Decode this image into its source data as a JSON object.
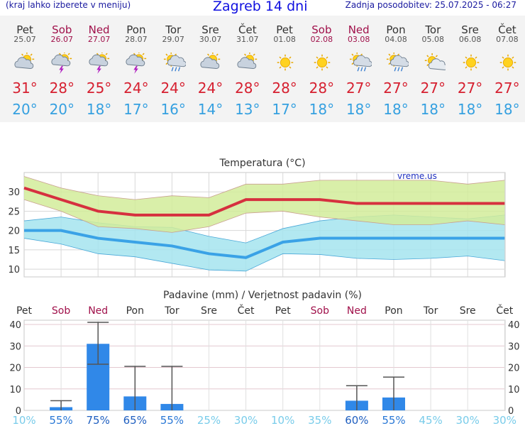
{
  "header": {
    "note": "(kraj lahko izberete v meniju)",
    "title": "Zagreb 14 dni",
    "updated": "Zadnja posodobitev: 25.07.2025 - 06:27"
  },
  "days": [
    {
      "name": "Pet",
      "date": "25.07",
      "weekend": false,
      "icon": "partly-cloudy-icon",
      "max": "31°",
      "min": "20°"
    },
    {
      "name": "Sob",
      "date": "26.07",
      "weekend": true,
      "icon": "thunderstorm-icon",
      "max": "28°",
      "min": "20°"
    },
    {
      "name": "Ned",
      "date": "27.07",
      "weekend": true,
      "icon": "thunderstorm-icon",
      "max": "25°",
      "min": "18°"
    },
    {
      "name": "Pon",
      "date": "28.07",
      "weekend": false,
      "icon": "thunderstorm-icon",
      "max": "24°",
      "min": "17°"
    },
    {
      "name": "Tor",
      "date": "29.07",
      "weekend": false,
      "icon": "sun-rain-icon",
      "max": "24°",
      "min": "16°"
    },
    {
      "name": "Sre",
      "date": "30.07",
      "weekend": false,
      "icon": "partly-cloudy-icon",
      "max": "24°",
      "min": "14°"
    },
    {
      "name": "Čet",
      "date": "31.07",
      "weekend": false,
      "icon": "partly-cloudy-icon",
      "max": "28°",
      "min": "13°"
    },
    {
      "name": "Pet",
      "date": "01.08",
      "weekend": false,
      "icon": "sunny-icon",
      "max": "28°",
      "min": "17°"
    },
    {
      "name": "Sob",
      "date": "02.08",
      "weekend": true,
      "icon": "sunny-icon",
      "max": "28°",
      "min": "18°"
    },
    {
      "name": "Ned",
      "date": "03.08",
      "weekend": true,
      "icon": "sun-rain-icon",
      "max": "27°",
      "min": "18°"
    },
    {
      "name": "Pon",
      "date": "04.08",
      "weekend": false,
      "icon": "sun-rain-icon",
      "max": "27°",
      "min": "18°"
    },
    {
      "name": "Tor",
      "date": "05.08",
      "weekend": false,
      "icon": "sun-cloud-icon",
      "max": "27°",
      "min": "18°"
    },
    {
      "name": "Sre",
      "date": "06.08",
      "weekend": false,
      "icon": "sunny-icon",
      "max": "27°",
      "min": "18°"
    },
    {
      "name": "Čet",
      "date": "07.08",
      "weekend": false,
      "icon": "sunny-icon",
      "max": "27°",
      "min": "18°"
    }
  ],
  "colors": {
    "max_line": "#d6303f",
    "min_line": "#3aa2e6",
    "max_band": "#d2ec9a",
    "min_band": "#a4e4ee",
    "bar": "#3088e8",
    "weekend": "#a0104a"
  },
  "watermark": "vreme.us",
  "chart_data": [
    {
      "type": "line",
      "title": "Temperatura (°C)",
      "categories": [
        "Pet",
        "Sob",
        "Ned",
        "Pon",
        "Tor",
        "Sre",
        "Čet",
        "Pet",
        "Sob",
        "Ned",
        "Pon",
        "Tor",
        "Sre",
        "Čet"
      ],
      "ylim": [
        8,
        35
      ],
      "yticks": [
        10,
        15,
        20,
        25,
        30
      ],
      "grid": true,
      "series": [
        {
          "values": [
            31,
            28,
            25,
            24,
            24,
            24,
            28,
            28,
            28,
            27,
            27,
            27,
            27,
            27
          ],
          "band_upper": [
            34,
            31,
            29,
            28,
            29,
            28.5,
            32,
            32,
            33,
            33,
            33,
            33,
            32,
            33
          ],
          "band_lower": [
            28,
            25,
            21,
            20.5,
            19.5,
            21,
            24.5,
            25,
            23.5,
            22.5,
            21.5,
            21.5,
            22.5,
            21.5
          ]
        },
        {
          "values": [
            20,
            20,
            18,
            17,
            16,
            14,
            13,
            17,
            18,
            18,
            18,
            18,
            18,
            18
          ],
          "band_upper": [
            22.5,
            23.5,
            22,
            21,
            20.8,
            18.5,
            16.8,
            20.5,
            22.5,
            23.5,
            24,
            23.5,
            23,
            24
          ],
          "band_lower": [
            18,
            16.5,
            14,
            13.2,
            11.5,
            9.8,
            9.5,
            14,
            13.8,
            12.8,
            12.5,
            12.8,
            13.4,
            12.2
          ]
        }
      ]
    },
    {
      "type": "bar",
      "title": "Padavine (mm) / Verjetnost padavin (%)",
      "categories": [
        "Pet",
        "Sob",
        "Ned",
        "Pon",
        "Tor",
        "Sre",
        "Čet",
        "Pet",
        "Sob",
        "Ned",
        "Pon",
        "Tor",
        "Sre",
        "Čet"
      ],
      "values": [
        0,
        1.5,
        31,
        6.5,
        3,
        0,
        0,
        0,
        0,
        4.5,
        6,
        0,
        0,
        0
      ],
      "error_high": [
        0,
        4.5,
        41,
        20.5,
        20.5,
        0,
        0,
        0,
        0,
        11.5,
        15.5,
        0,
        0,
        0
      ],
      "error_low": [
        0,
        0,
        21.5,
        0,
        0,
        0,
        0,
        0,
        0,
        0,
        0,
        0,
        0,
        0
      ],
      "probability": [
        "10%",
        "55%",
        "75%",
        "65%",
        "55%",
        "25%",
        "30%",
        "10%",
        "35%",
        "60%",
        "55%",
        "45%",
        "30%",
        "30%"
      ],
      "ylim": [
        0,
        42
      ],
      "yticks": [
        0,
        10,
        20,
        30,
        40
      ],
      "grid": true
    }
  ]
}
